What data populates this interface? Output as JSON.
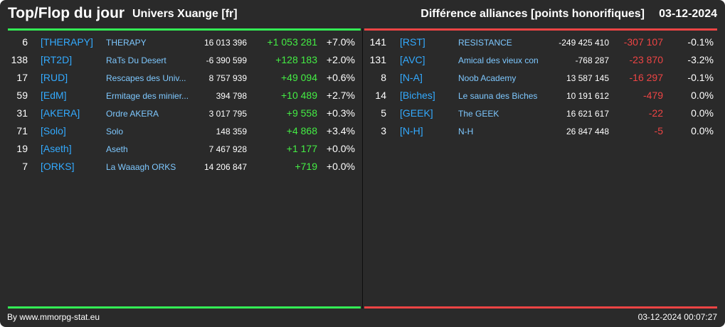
{
  "header": {
    "title": "Top/Flop du jour",
    "subtitle": "Univers Xuange [fr]",
    "right_title": "Différence alliances [points honorifiques]",
    "date": "03-12-2024"
  },
  "colors": {
    "background": "#2a2a2a",
    "positive": "#44ee44",
    "negative": "#ee4444",
    "tag": "#33aaff",
    "name": "#7ec8ff",
    "top_bar": "#33ee55",
    "flop_bar": "#ee4444"
  },
  "top": [
    {
      "rank": "6",
      "tag": "[THERAPY]",
      "name": "THERAPY",
      "points": "16 013 396",
      "delta": "+1 053 281",
      "pct": "+7.0%"
    },
    {
      "rank": "138",
      "tag": "[RT2D]",
      "name": "RaTs Du Desert",
      "points": "-6 390 599",
      "delta": "+128 183",
      "pct": "+2.0%"
    },
    {
      "rank": "17",
      "tag": "[RUD]",
      "name": "Rescapes des Univ...",
      "points": "8 757 939",
      "delta": "+49 094",
      "pct": "+0.6%"
    },
    {
      "rank": "59",
      "tag": "[EdM]",
      "name": "Ermitage des minier...",
      "points": "394 798",
      "delta": "+10 489",
      "pct": "+2.7%"
    },
    {
      "rank": "31",
      "tag": "[AKERA]",
      "name": "Ordre AKERA",
      "points": "3 017 795",
      "delta": "+9 558",
      "pct": "+0.3%"
    },
    {
      "rank": "71",
      "tag": "[Solo]",
      "name": "Solo",
      "points": "148 359",
      "delta": "+4 868",
      "pct": "+3.4%"
    },
    {
      "rank": "19",
      "tag": "[Aseth]",
      "name": "Aseth",
      "points": "7 467 928",
      "delta": "+1 177",
      "pct": "+0.0%"
    },
    {
      "rank": "7",
      "tag": "[ORKS]",
      "name": "La Waaagh ORKS",
      "points": "14 206 847",
      "delta": "+719",
      "pct": "+0.0%"
    }
  ],
  "flop": [
    {
      "rank": "141",
      "tag": "[RST]",
      "name": "RESISTANCE",
      "points": "-249 425 410",
      "delta": "-307 107",
      "pct": "-0.1%"
    },
    {
      "rank": "131",
      "tag": "[AVC]",
      "name": "Amical des vieux con",
      "points": "-768 287",
      "delta": "-23 870",
      "pct": "-3.2%"
    },
    {
      "rank": "8",
      "tag": "[N-A]",
      "name": "Noob Academy",
      "points": "13 587 145",
      "delta": "-16 297",
      "pct": "-0.1%"
    },
    {
      "rank": "14",
      "tag": "[Biches]",
      "name": "Le sauna des Biches",
      "points": "10 191 612",
      "delta": "-479",
      "pct": "0.0%"
    },
    {
      "rank": "5",
      "tag": "[GEEK]",
      "name": "The GEEK",
      "points": "16 621 617",
      "delta": "-22",
      "pct": "0.0%"
    },
    {
      "rank": "3",
      "tag": "[N-H]",
      "name": "N-H",
      "points": "26 847 448",
      "delta": "-5",
      "pct": "0.0%"
    }
  ],
  "footer": {
    "credit": "By www.mmorpg-stat.eu",
    "timestamp": "03-12-2024 00:07:27"
  }
}
